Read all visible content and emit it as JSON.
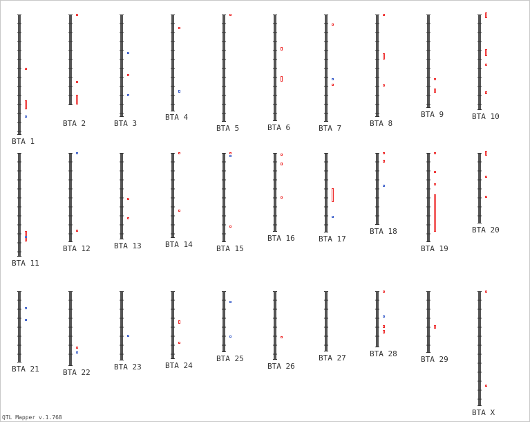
{
  "chromosomes": [
    {
      "label": "BTA 1"
    },
    {
      "label": "BTA 2"
    },
    {
      "label": "BTA 3"
    },
    {
      "label": "BTA 4"
    },
    {
      "label": "BTA 5"
    },
    {
      "label": "BTA 6"
    },
    {
      "label": "BTA 7"
    },
    {
      "label": "BTA 8"
    },
    {
      "label": "BTA 9"
    },
    {
      "label": "BTA 10"
    },
    {
      "label": "BTA 11"
    },
    {
      "label": "BTA 12"
    },
    {
      "label": "BTA 13"
    },
    {
      "label": "BTA 14"
    },
    {
      "label": "BTA 15"
    },
    {
      "label": "BTA 16"
    },
    {
      "label": "BTA 17"
    },
    {
      "label": "BTA 18"
    },
    {
      "label": "BTA 19"
    },
    {
      "label": "BTA 20"
    },
    {
      "label": "BTA 21"
    },
    {
      "label": "BTA 22"
    },
    {
      "label": "BTA 23"
    },
    {
      "label": "BTA 24"
    },
    {
      "label": "BTA 25"
    },
    {
      "label": "BTA 26"
    },
    {
      "label": "BTA 27"
    },
    {
      "label": "BTA 28"
    },
    {
      "label": "BTA 29"
    },
    {
      "label": "BTA X"
    }
  ],
  "footer": "QTL Mapper v.1.768"
}
